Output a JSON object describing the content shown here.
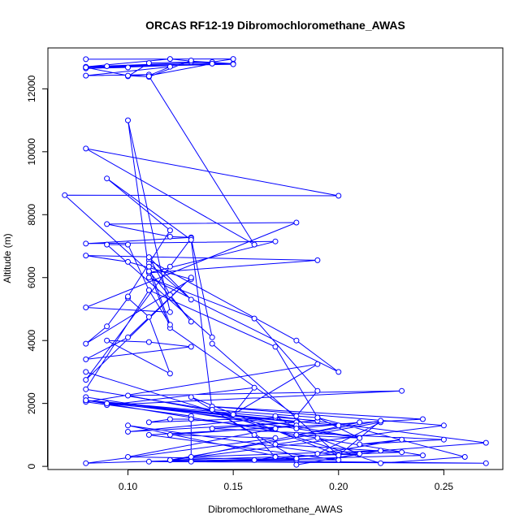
{
  "chart_data": {
    "type": "scatter",
    "title": "ORCAS RF12-19 Dibromochloromethane_AWAS",
    "xlabel": "Dibromochloromethane_AWAS",
    "ylabel": "Altitude (m)",
    "xlim": [
      0.062,
      0.278
    ],
    "ylim": [
      -100,
      13300
    ],
    "x_ticks": [
      0.1,
      0.15,
      0.2,
      0.25
    ],
    "x_tick_labels": [
      "0.10",
      "0.15",
      "0.20",
      "0.25"
    ],
    "y_ticks": [
      0,
      2000,
      4000,
      6000,
      8000,
      10000,
      12000
    ],
    "y_tick_labels": [
      "0",
      "2000",
      "4000",
      "6000",
      "8000",
      "10000",
      "12000"
    ],
    "grid": false,
    "connected": true,
    "color": "#0000ff",
    "series": [
      {
        "x": [
          0.08,
          0.15,
          0.14,
          0.08,
          0.12,
          0.13,
          0.15,
          0.08,
          0.1,
          0.09,
          0.14,
          0.11,
          0.12,
          0.08,
          0.11,
          0.1,
          0.11,
          0.13,
          0.15,
          0.08,
          0.1,
          0.11,
          0.13
        ],
        "y": [
          12940,
          12950,
          12850,
          12700,
          12950,
          12880,
          12800,
          12650,
          12680,
          12720,
          12800,
          12420,
          12700,
          12420,
          12450,
          12400,
          12820,
          12850,
          12780,
          12680,
          12420,
          12380,
          12900
        ]
      },
      {
        "x": [
          0.11,
          0.16,
          0.08,
          0.2,
          0.07,
          0.11,
          0.1,
          0.12,
          0.08,
          0.18,
          0.09,
          0.12,
          0.13,
          0.08,
          0.17,
          0.11,
          0.19,
          0.08,
          0.1,
          0.13,
          0.08,
          0.09,
          0.1,
          0.11,
          0.12,
          0.09,
          0.11,
          0.13,
          0.08,
          0.1,
          0.13,
          0.08,
          0.12,
          0.13,
          0.14,
          0.09,
          0.1,
          0.11,
          0.08,
          0.14,
          0.13,
          0.09,
          0.12,
          0.1
        ],
        "y": [
          12400,
          7050,
          10100,
          8600,
          8620,
          6200,
          11000,
          4900,
          5050,
          7750,
          7700,
          7300,
          7280,
          7080,
          7150,
          6150,
          6550,
          6700,
          6500,
          5950,
          3900,
          4450,
          5350,
          4750,
          2950,
          4000,
          3950,
          3800,
          3400,
          4100,
          6000,
          2750,
          6350,
          7250,
          4100,
          7050,
          7050,
          5600,
          2450,
          1800,
          7200,
          9150,
          7500,
          5400
        ]
      },
      {
        "x": [
          0.08,
          0.21,
          0.1,
          0.23,
          0.09,
          0.16,
          0.15,
          0.19,
          0.08,
          0.13,
          0.13,
          0.12,
          0.11,
          0.17,
          0.1,
          0.18,
          0.09,
          0.2,
          0.08,
          0.18,
          0.12,
          0.17,
          0.08,
          0.13,
          0.13,
          0.17,
          0.1,
          0.2,
          0.11,
          0.24,
          0.14,
          0.25,
          0.12,
          0.22,
          0.19,
          0.23,
          0.21,
          0.25,
          0.14,
          0.19,
          0.08,
          0.24,
          0.13,
          0.18,
          0.1,
          0.2,
          0.13,
          0.16,
          0.17,
          0.23,
          0.17,
          0.19,
          0.21,
          0.18,
          0.22,
          0.13,
          0.21,
          0.18,
          0.17,
          0.27,
          0.16,
          0.17,
          0.12,
          0.27,
          0.11,
          0.18,
          0.14,
          0.19,
          0.26,
          0.22,
          0.08
        ],
        "y": [
          2200,
          900,
          2250,
          2400,
          1950,
          2500,
          1650,
          3250,
          2050,
          1600,
          1500,
          1500,
          1400,
          1550,
          1100,
          1400,
          2000,
          1300,
          2100,
          1300,
          1000,
          900,
          100,
          200,
          1500,
          1200,
          300,
          200,
          1000,
          1500,
          1900,
          1300,
          200,
          1400,
          400,
          850,
          700,
          850,
          1200,
          1450,
          2100,
          350,
          150,
          200,
          1300,
          350,
          2200,
          1000,
          300,
          450,
          700,
          900,
          400,
          50,
          500,
          300,
          1400,
          1200,
          1600,
          750,
          200,
          300,
          200,
          100,
          150,
          250,
          1800,
          1550,
          300,
          100,
          3000
        ]
      },
      {
        "x": [
          0.11,
          0.18,
          0.2,
          0.11,
          0.16,
          0.19,
          0.18,
          0.12,
          0.11,
          0.13,
          0.12,
          0.11,
          0.13,
          0.11,
          0.11,
          0.12,
          0.11,
          0.17,
          0.19,
          0.21,
          0.18,
          0.22,
          0.2,
          0.14
        ],
        "y": [
          6550,
          4000,
          3000,
          6000,
          4700,
          2400,
          1600,
          4400,
          6200,
          4600,
          5450,
          6650,
          5300,
          6450,
          6350,
          4500,
          5600,
          3800,
          1550,
          900,
          1000,
          1450,
          350,
          3900
        ]
      }
    ]
  }
}
